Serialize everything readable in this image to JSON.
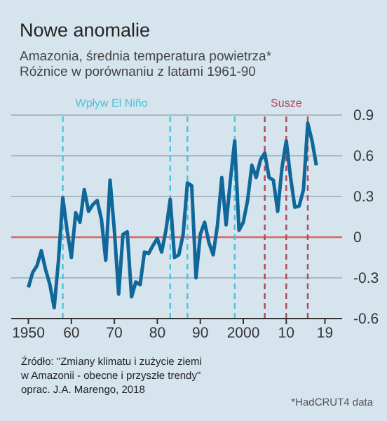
{
  "chart_data": {
    "type": "line",
    "title": "Nowe anomalie",
    "subtitle": "Amazonia, średnia temperatura powietrza*\nRóżnice w porównaniu z latami 1961-90",
    "x": [
      1950,
      1951,
      1952,
      1953,
      1954,
      1955,
      1956,
      1957,
      1958,
      1959,
      1960,
      1961,
      1962,
      1963,
      1964,
      1965,
      1966,
      1967,
      1968,
      1969,
      1970,
      1971,
      1972,
      1973,
      1974,
      1975,
      1976,
      1977,
      1978,
      1979,
      1980,
      1981,
      1982,
      1983,
      1984,
      1985,
      1986,
      1987,
      1988,
      1989,
      1990,
      1991,
      1992,
      1993,
      1994,
      1995,
      1996,
      1997,
      1998,
      1999,
      2000,
      2001,
      2002,
      2003,
      2004,
      2005,
      2006,
      2007,
      2008,
      2009,
      2010,
      2011,
      2012,
      2013,
      2014,
      2015,
      2016,
      2017
    ],
    "series": [
      {
        "color": "#10679a",
        "values": [
          -0.37,
          -0.26,
          -0.21,
          -0.1,
          -0.24,
          -0.35,
          -0.52,
          -0.17,
          0.29,
          0.05,
          -0.15,
          0.18,
          0.11,
          0.35,
          0.19,
          0.24,
          0.27,
          0.13,
          -0.17,
          0.42,
          0.05,
          -0.42,
          0.02,
          0.04,
          -0.44,
          -0.33,
          -0.35,
          -0.11,
          -0.12,
          -0.06,
          -0.01,
          -0.11,
          0.05,
          0.28,
          -0.15,
          -0.13,
          0.02,
          0.4,
          0.38,
          -0.3,
          0.02,
          0.11,
          -0.04,
          -0.13,
          0.09,
          0.44,
          0.09,
          0.42,
          0.71,
          0.05,
          0.11,
          0.27,
          0.53,
          0.44,
          0.57,
          0.62,
          0.44,
          0.42,
          0.19,
          0.51,
          0.71,
          0.44,
          0.22,
          0.23,
          0.35,
          0.84,
          0.71,
          0.53
        ]
      }
    ],
    "xlim": [
      1946,
      2023
    ],
    "xticks": [
      1950,
      {
        "value": 1960,
        "label": "60"
      },
      {
        "value": 1970,
        "label": "70"
      },
      {
        "value": 1980,
        "label": "80"
      },
      {
        "value": 1990,
        "label": "90"
      },
      2000,
      {
        "value": 2010,
        "label": "10"
      },
      {
        "value": 2019,
        "label": "19"
      }
    ],
    "ylim": [
      -0.6,
      0.9
    ],
    "yticks": [
      -0.6,
      -0.3,
      0,
      0.3,
      0.6,
      0.9
    ],
    "grid": "y",
    "marker": "none",
    "line_style": "solid",
    "ref_lines": [
      {
        "axis": "y",
        "value": 0,
        "color": "#e06466",
        "line_style": "solid"
      },
      {
        "axis": "x",
        "value": 1958,
        "label": "Wpływ El Niño",
        "color": "#4cc3da",
        "line_style": "dashed"
      },
      {
        "axis": "x",
        "value": 1983,
        "color": "#4cc3da",
        "line_style": "dashed"
      },
      {
        "axis": "x",
        "value": 1987,
        "color": "#4cc3da",
        "line_style": "dashed"
      },
      {
        "axis": "x",
        "value": 1998,
        "color": "#4cc3da",
        "line_style": "dashed"
      },
      {
        "axis": "x",
        "value": 2005,
        "color": "#b0485a",
        "line_style": "dashed"
      },
      {
        "axis": "x",
        "value": 2010,
        "label": "Susze",
        "color": "#b0485a",
        "line_style": "dashed"
      },
      {
        "axis": "x",
        "value": 2015,
        "color": "#b0485a",
        "line_style": "dashed"
      }
    ],
    "annotations": [
      "Źródło: \"Zmiany klimatu i zużycie ziemi\nw Amazonii - obecne i przyszłe trendy\"\noprac. J.A. Marengo, 2018",
      "*HadCRUT4 data"
    ]
  }
}
